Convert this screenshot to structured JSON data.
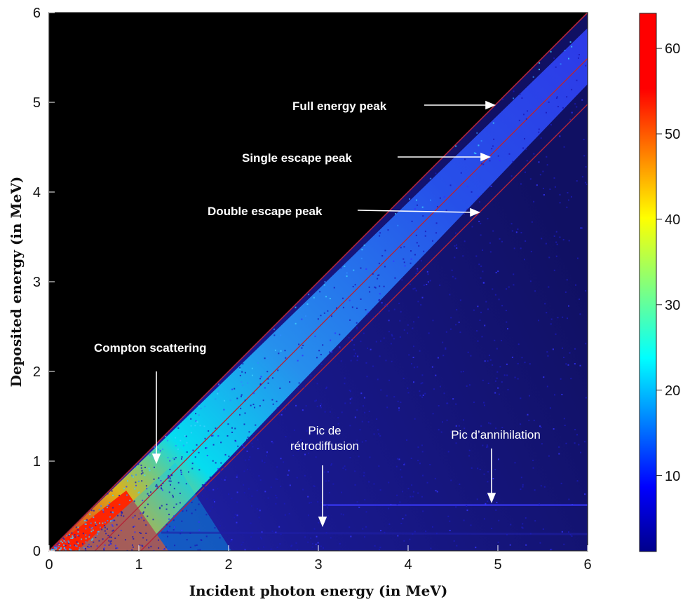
{
  "chart_data": {
    "type": "heatmap",
    "title": "",
    "xlabel": "Incident photon energy (in MeV)",
    "ylabel": "Deposited energy (in MeV)",
    "xlim": [
      0,
      6
    ],
    "ylim": [
      0,
      6
    ],
    "x_ticks": [
      "0",
      "1",
      "2",
      "3",
      "4",
      "5",
      "6"
    ],
    "y_ticks": [
      "0",
      "1",
      "2",
      "3",
      "4",
      "5",
      "6"
    ],
    "colorbar": {
      "colormap": "jet",
      "range": [
        1,
        64
      ],
      "ticks": [
        "10",
        "20",
        "30",
        "40",
        "50",
        "60"
      ]
    },
    "features": [
      {
        "name": "Full energy peak",
        "line": "y = x"
      },
      {
        "name": "Single escape peak",
        "line": "y = x - 0.511"
      },
      {
        "name": "Double escape peak",
        "line": "y = x - 1.022"
      },
      {
        "name": "Pic d'annihilation",
        "line": "y = 0.511"
      }
    ],
    "annotations": [
      {
        "text": "Full energy peak",
        "arrow_to": [
          4.95,
          4.95
        ]
      },
      {
        "text": "Single escape peak",
        "arrow_to": [
          4.95,
          4.4
        ]
      },
      {
        "text": "Double escape peak",
        "arrow_to": [
          4.85,
          3.8
        ]
      },
      {
        "text": "Compton scattering",
        "arrow_to": [
          1.2,
          1.0
        ]
      },
      {
        "text": "Pic de",
        "arrow_to": [
          3.0,
          0.28
        ]
      },
      {
        "text": "rétrodiffusion",
        "arrow_to": [
          3.0,
          0.28
        ]
      },
      {
        "text": "Pic d’annihilation",
        "arrow_to": [
          4.95,
          0.55
        ]
      }
    ],
    "grid": false,
    "legend": "colorbar-right"
  },
  "colors": {
    "background": "#000000",
    "diagonal_line": "#b3263a",
    "annotation": "#ffffff"
  }
}
